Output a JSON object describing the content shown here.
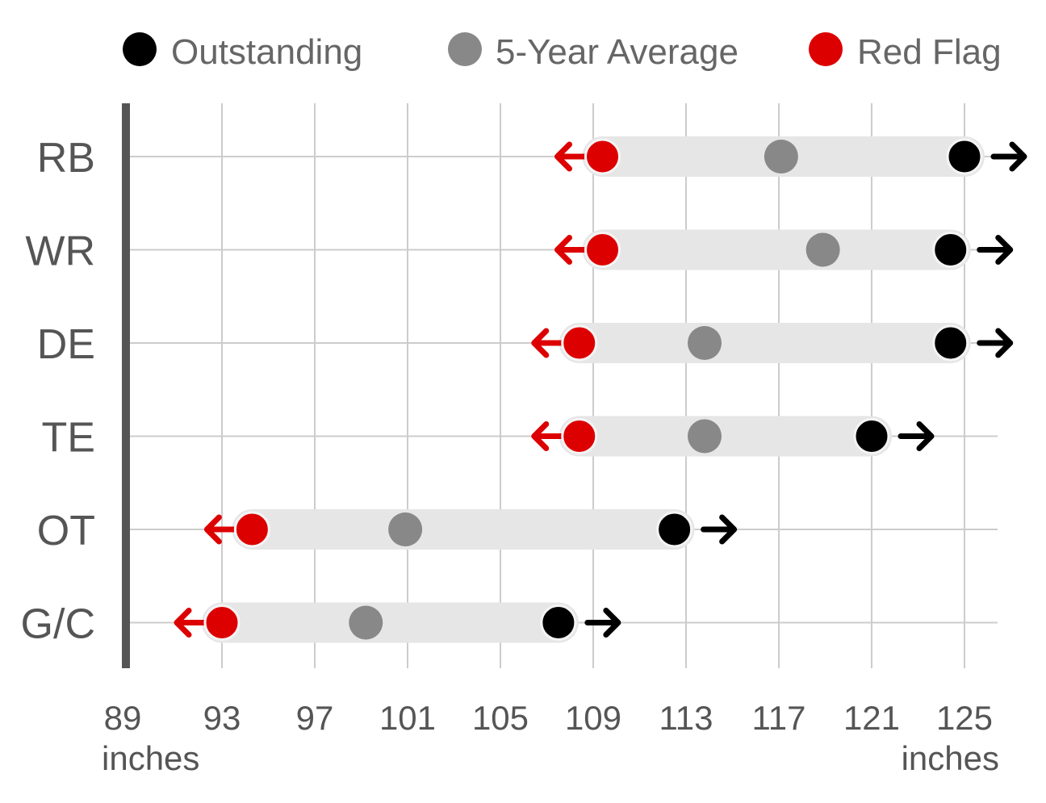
{
  "chart_data": {
    "type": "range-dot",
    "x_axis": {
      "ticks": [
        89,
        93,
        97,
        101,
        105,
        109,
        113,
        117,
        121,
        125
      ],
      "tick_labels": [
        "89",
        "93",
        "97",
        "101",
        "105",
        "109",
        "113",
        "117",
        "121",
        "125"
      ],
      "unit_left": "inches",
      "unit_right": "inches",
      "range": [
        89,
        126
      ]
    },
    "legend": [
      {
        "key": "outstanding",
        "label": "Outstanding",
        "color": "#000000"
      },
      {
        "key": "average",
        "label": "5-Year Average",
        "color": "#888888"
      },
      {
        "key": "red_flag",
        "label": "Red Flag",
        "color": "#dd0000"
      }
    ],
    "legend_position": "top",
    "grid": true,
    "rows": [
      {
        "label": "RB",
        "red_flag": 109.4,
        "average": 117.1,
        "outstanding": 125.0
      },
      {
        "label": "WR",
        "red_flag": 109.4,
        "average": 118.9,
        "outstanding": 124.4
      },
      {
        "label": "DE",
        "red_flag": 108.4,
        "average": 113.8,
        "outstanding": 124.4
      },
      {
        "label": "TE",
        "red_flag": 108.4,
        "average": 113.8,
        "outstanding": 121.0
      },
      {
        "label": "OT",
        "red_flag": 94.3,
        "average": 100.9,
        "outstanding": 112.5
      },
      {
        "label": "G/C",
        "red_flag": 93.0,
        "average": 99.2,
        "outstanding": 107.5
      }
    ]
  }
}
